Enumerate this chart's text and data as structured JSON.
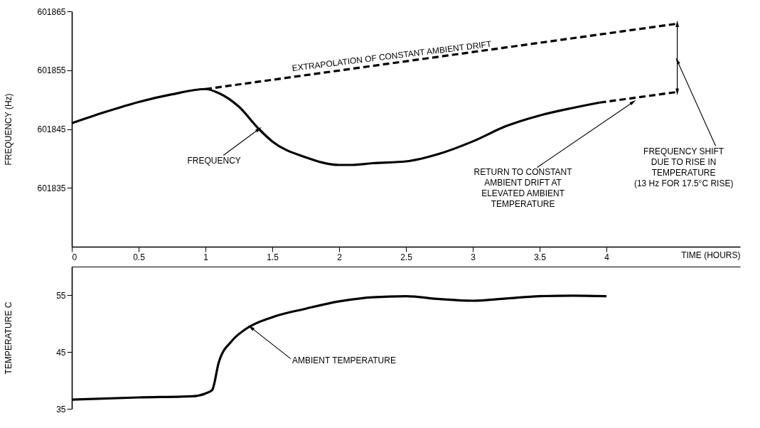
{
  "chart_data": [
    {
      "type": "line",
      "xlabel": "TIME (HOURS)",
      "ylabel": "FREQUENCY (Hz)",
      "xlim": [
        0,
        5
      ],
      "xticks": [
        0,
        0.5,
        1,
        1.5,
        2,
        2.5,
        3,
        3.5,
        4
      ],
      "ylim": [
        601825,
        601865
      ],
      "yticks": [
        601835,
        601845,
        601855,
        601865
      ],
      "grid": false,
      "series": [
        {
          "color": "#000000",
          "line_style": "solid",
          "x": [
            0,
            0.25,
            0.5,
            0.75,
            1.0,
            1.1,
            1.25,
            1.4,
            1.5,
            1.75,
            2.0,
            2.1,
            2.25,
            2.5,
            2.75,
            3.0,
            3.25,
            3.5,
            3.75,
            3.95
          ],
          "values": [
            601846.0,
            601847.9,
            601849.6,
            601850.9,
            601851.8,
            601851.1,
            601848.8,
            601845.0,
            601842.9,
            601840.2,
            601838.9,
            601838.9,
            601839.2,
            601839.5,
            601840.8,
            601842.9,
            601845.5,
            601847.3,
            601848.6,
            601849.5
          ]
        },
        {
          "color": "#000000",
          "line_style": "dashed",
          "x": [
            1.0,
            4.53
          ],
          "values": [
            601851.8,
            601862.9
          ]
        },
        {
          "color": "#000000",
          "line_style": "dashed",
          "x": [
            3.95,
            4.53
          ],
          "values": [
            601849.5,
            601851.3
          ]
        },
        {
          "color": "#000000",
          "line_style": "solid",
          "x": [
            4.53,
            4.53
          ],
          "values": [
            601851.3,
            601862.9
          ]
        }
      ],
      "annotations": [
        {
          "text": "EXTRAPOLATION OF CONSTANT AMBIENT DRIFT",
          "x": 2.4,
          "y": 601856.2
        },
        {
          "text": "FREQUENCY",
          "x": 1.4,
          "y": 601845.0
        },
        {
          "text": "RETURN TO CONSTANT\nAMBIENT DRIFT AT\nELEVATED AMBIENT\nTEMPERATURE",
          "x": 4.2,
          "y": 601849.6
        },
        {
          "text": "FREQUENCY SHIFT\nDUE TO RISE IN\nTEMPERATURE\n(13 Hz FOR 17.5°C RISE)",
          "x": 4.53,
          "y": 601856.6
        }
      ]
    },
    {
      "type": "line",
      "ylabel": "TEMPERATURE C",
      "xlim": [
        0,
        5
      ],
      "ylim": [
        35,
        60
      ],
      "yticks": [
        35,
        45,
        55
      ],
      "tick_labels": "y",
      "grid": false,
      "series": [
        {
          "color": "#000000",
          "line_style": "solid",
          "x": [
            0,
            0.5,
            0.9,
            1.0,
            1.05,
            1.1,
            1.2,
            1.3,
            1.5,
            1.75,
            2.0,
            2.25,
            2.5,
            2.75,
            3.0,
            3.25,
            3.5,
            3.75,
            4.0
          ],
          "values": [
            36.6,
            37.0,
            37.2,
            37.7,
            38.3,
            43.2,
            47.0,
            49.0,
            51.1,
            52.6,
            53.9,
            54.6,
            54.8,
            54.3,
            54.0,
            54.4,
            54.8,
            54.9,
            54.8
          ]
        }
      ],
      "annotations": [
        {
          "text": "AMBIENT TEMPERATURE",
          "x": 1.34,
          "y": 49.3
        }
      ]
    }
  ]
}
